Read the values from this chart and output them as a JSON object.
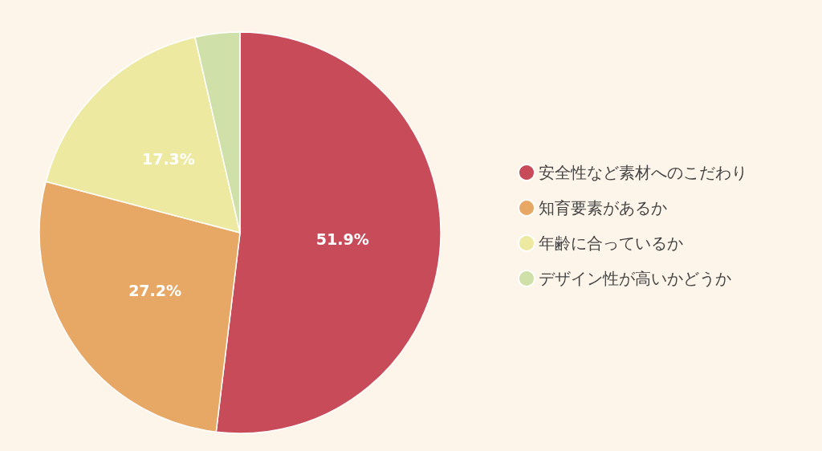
{
  "chart_data": {
    "type": "pie",
    "categories": [
      "安全性など素材へのこだわり",
      "知育要素があるか",
      "年齢に合っているか",
      "デザイン性が高いかどうか"
    ],
    "values": [
      51.9,
      27.2,
      17.3,
      3.6
    ],
    "value_labels": [
      "51.9%",
      "27.2%",
      "17.3%",
      null
    ],
    "colors": [
      "#c84b5a",
      "#e8a865",
      "#ede9a0",
      "#cfe0a8"
    ],
    "legend": "right"
  }
}
